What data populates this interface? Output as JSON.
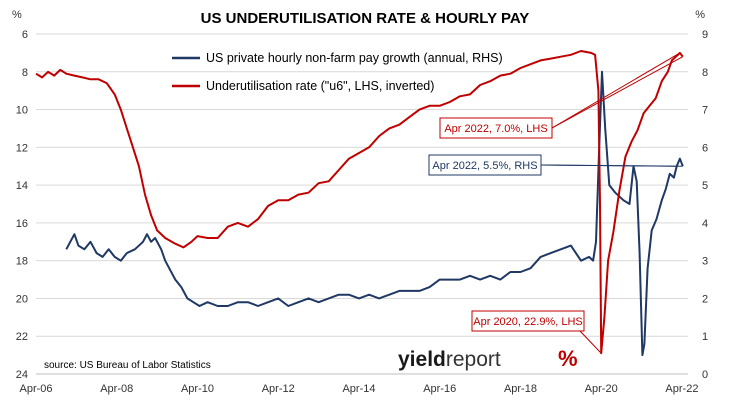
{
  "chart_data": {
    "type": "line",
    "title": "US UNDERUTILISATION RATE & HOURLY PAY",
    "left_axis": {
      "unit": "%",
      "ylim": [
        24,
        6
      ],
      "inverted": true,
      "ticks": [
        6,
        8,
        10,
        12,
        14,
        16,
        18,
        20,
        22,
        24
      ]
    },
    "right_axis": {
      "unit": "%",
      "ylim": [
        0,
        9
      ],
      "ticks": [
        0,
        1,
        2,
        3,
        4,
        5,
        6,
        7,
        8,
        9
      ]
    },
    "x_axis": {
      "range": [
        2006.25,
        2022.4
      ],
      "ticks": [
        {
          "label": "Apr-06",
          "x": 2006.25
        },
        {
          "label": "Apr-08",
          "x": 2008.25
        },
        {
          "label": "Apr-10",
          "x": 2010.25
        },
        {
          "label": "Apr-12",
          "x": 2012.25
        },
        {
          "label": "Apr-14",
          "x": 2014.25
        },
        {
          "label": "Apr-16",
          "x": 2016.25
        },
        {
          "label": "Apr-18",
          "x": 2018.25
        },
        {
          "label": "Apr-20",
          "x": 2020.25
        },
        {
          "label": "Apr-22",
          "x": 2022.25
        }
      ]
    },
    "grid": "horizontal",
    "legend_position": "top-center",
    "series": [
      {
        "name": "US private hourly non-farm pay growth (annual, RHS)",
        "axis": "right",
        "color": "#1f3864",
        "points": [
          [
            2007.0,
            3.3
          ],
          [
            2007.1,
            3.5
          ],
          [
            2007.2,
            3.7
          ],
          [
            2007.3,
            3.4
          ],
          [
            2007.45,
            3.3
          ],
          [
            2007.6,
            3.5
          ],
          [
            2007.75,
            3.2
          ],
          [
            2007.9,
            3.1
          ],
          [
            2008.05,
            3.3
          ],
          [
            2008.2,
            3.1
          ],
          [
            2008.35,
            3.0
          ],
          [
            2008.5,
            3.2
          ],
          [
            2008.7,
            3.3
          ],
          [
            2008.9,
            3.5
          ],
          [
            2009.0,
            3.7
          ],
          [
            2009.1,
            3.5
          ],
          [
            2009.2,
            3.6
          ],
          [
            2009.35,
            3.3
          ],
          [
            2009.45,
            3.0
          ],
          [
            2009.55,
            2.8
          ],
          [
            2009.7,
            2.5
          ],
          [
            2009.85,
            2.3
          ],
          [
            2010.0,
            2.0
          ],
          [
            2010.15,
            1.9
          ],
          [
            2010.3,
            1.8
          ],
          [
            2010.5,
            1.9
          ],
          [
            2010.75,
            1.8
          ],
          [
            2011.0,
            1.8
          ],
          [
            2011.25,
            1.9
          ],
          [
            2011.5,
            1.9
          ],
          [
            2011.75,
            1.8
          ],
          [
            2012.0,
            1.9
          ],
          [
            2012.25,
            2.0
          ],
          [
            2012.5,
            1.8
          ],
          [
            2012.75,
            1.9
          ],
          [
            2013.0,
            2.0
          ],
          [
            2013.25,
            1.9
          ],
          [
            2013.5,
            2.0
          ],
          [
            2013.75,
            2.1
          ],
          [
            2014.0,
            2.1
          ],
          [
            2014.25,
            2.0
          ],
          [
            2014.5,
            2.1
          ],
          [
            2014.75,
            2.0
          ],
          [
            2015.0,
            2.1
          ],
          [
            2015.25,
            2.2
          ],
          [
            2015.5,
            2.2
          ],
          [
            2015.75,
            2.2
          ],
          [
            2016.0,
            2.3
          ],
          [
            2016.25,
            2.5
          ],
          [
            2016.5,
            2.5
          ],
          [
            2016.75,
            2.5
          ],
          [
            2017.0,
            2.6
          ],
          [
            2017.25,
            2.5
          ],
          [
            2017.5,
            2.6
          ],
          [
            2017.75,
            2.5
          ],
          [
            2018.0,
            2.7
          ],
          [
            2018.25,
            2.7
          ],
          [
            2018.5,
            2.8
          ],
          [
            2018.75,
            3.1
          ],
          [
            2019.0,
            3.2
          ],
          [
            2019.25,
            3.3
          ],
          [
            2019.5,
            3.4
          ],
          [
            2019.75,
            3.0
          ],
          [
            2019.95,
            3.1
          ],
          [
            2020.05,
            3.0
          ],
          [
            2020.12,
            3.5
          ],
          [
            2020.2,
            6.0
          ],
          [
            2020.27,
            8.0
          ],
          [
            2020.35,
            6.5
          ],
          [
            2020.45,
            5.0
          ],
          [
            2020.6,
            4.8
          ],
          [
            2020.8,
            4.6
          ],
          [
            2020.95,
            4.5
          ],
          [
            2021.05,
            5.5
          ],
          [
            2021.13,
            5.1
          ],
          [
            2021.2,
            3.2
          ],
          [
            2021.27,
            0.5
          ],
          [
            2021.32,
            0.8
          ],
          [
            2021.4,
            2.8
          ],
          [
            2021.5,
            3.8
          ],
          [
            2021.62,
            4.1
          ],
          [
            2021.75,
            4.6
          ],
          [
            2021.85,
            4.9
          ],
          [
            2021.95,
            5.3
          ],
          [
            2022.05,
            5.2
          ],
          [
            2022.12,
            5.5
          ],
          [
            2022.2,
            5.7
          ],
          [
            2022.27,
            5.5
          ]
        ]
      },
      {
        "name": "Underutilisation rate (\"u6\", LHS, inverted)",
        "axis": "left",
        "color": "#c00000",
        "points": [
          [
            2006.25,
            8.1
          ],
          [
            2006.4,
            8.3
          ],
          [
            2006.55,
            8.0
          ],
          [
            2006.7,
            8.2
          ],
          [
            2006.85,
            7.9
          ],
          [
            2007.0,
            8.1
          ],
          [
            2007.2,
            8.2
          ],
          [
            2007.4,
            8.3
          ],
          [
            2007.6,
            8.4
          ],
          [
            2007.8,
            8.4
          ],
          [
            2008.0,
            8.6
          ],
          [
            2008.2,
            9.2
          ],
          [
            2008.35,
            10.0
          ],
          [
            2008.5,
            11.0
          ],
          [
            2008.65,
            12.0
          ],
          [
            2008.8,
            13.0
          ],
          [
            2008.95,
            14.5
          ],
          [
            2009.1,
            15.6
          ],
          [
            2009.25,
            16.4
          ],
          [
            2009.45,
            16.8
          ],
          [
            2009.7,
            17.1
          ],
          [
            2009.9,
            17.3
          ],
          [
            2010.1,
            17.0
          ],
          [
            2010.25,
            16.7
          ],
          [
            2010.5,
            16.8
          ],
          [
            2010.75,
            16.8
          ],
          [
            2011.0,
            16.2
          ],
          [
            2011.25,
            16.0
          ],
          [
            2011.5,
            16.2
          ],
          [
            2011.75,
            15.8
          ],
          [
            2012.0,
            15.1
          ],
          [
            2012.25,
            14.8
          ],
          [
            2012.5,
            14.8
          ],
          [
            2012.75,
            14.5
          ],
          [
            2013.0,
            14.4
          ],
          [
            2013.25,
            13.9
          ],
          [
            2013.5,
            13.8
          ],
          [
            2013.75,
            13.2
          ],
          [
            2014.0,
            12.6
          ],
          [
            2014.25,
            12.3
          ],
          [
            2014.5,
            12.0
          ],
          [
            2014.75,
            11.4
          ],
          [
            2015.0,
            11.0
          ],
          [
            2015.25,
            10.8
          ],
          [
            2015.5,
            10.4
          ],
          [
            2015.75,
            10.0
          ],
          [
            2016.0,
            9.8
          ],
          [
            2016.25,
            9.8
          ],
          [
            2016.5,
            9.6
          ],
          [
            2016.75,
            9.3
          ],
          [
            2017.0,
            9.2
          ],
          [
            2017.25,
            8.7
          ],
          [
            2017.5,
            8.5
          ],
          [
            2017.75,
            8.2
          ],
          [
            2018.0,
            8.1
          ],
          [
            2018.25,
            7.8
          ],
          [
            2018.5,
            7.6
          ],
          [
            2018.75,
            7.4
          ],
          [
            2019.0,
            7.3
          ],
          [
            2019.25,
            7.2
          ],
          [
            2019.5,
            7.1
          ],
          [
            2019.75,
            6.9
          ],
          [
            2020.0,
            7.0
          ],
          [
            2020.1,
            7.1
          ],
          [
            2020.18,
            9.0
          ],
          [
            2020.22,
            15.0
          ],
          [
            2020.25,
            22.9
          ],
          [
            2020.33,
            21.0
          ],
          [
            2020.42,
            18.0
          ],
          [
            2020.55,
            16.5
          ],
          [
            2020.7,
            14.3
          ],
          [
            2020.85,
            12.5
          ],
          [
            2021.0,
            11.7
          ],
          [
            2021.15,
            11.1
          ],
          [
            2021.3,
            10.2
          ],
          [
            2021.45,
            9.8
          ],
          [
            2021.6,
            9.4
          ],
          [
            2021.75,
            8.5
          ],
          [
            2021.9,
            8.0
          ],
          [
            2022.0,
            7.4
          ],
          [
            2022.1,
            7.2
          ],
          [
            2022.2,
            7.0
          ],
          [
            2022.27,
            7.2
          ]
        ]
      }
    ]
  },
  "annotations": [
    {
      "text": "Apr 2022, 7.0%, LHS",
      "color": "#c00000"
    },
    {
      "text": "Apr 2022, 5.5%, RHS",
      "color": "#1f3864"
    },
    {
      "text": "Apr 2020, 22.9%, LHS",
      "color": "#c00000"
    }
  ],
  "source": "source: US Bureau of Labor Statistics",
  "logo": {
    "part1": "yield",
    "part2": "report",
    "pct": "%",
    "pct_color": "#c00000",
    "pct_accent": "#2e7d32"
  }
}
